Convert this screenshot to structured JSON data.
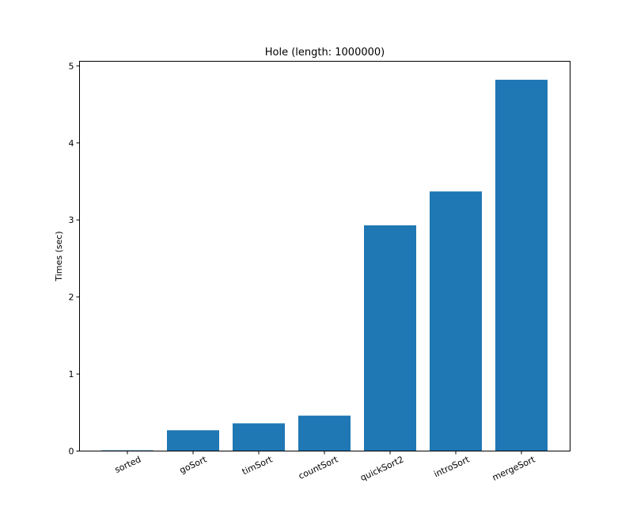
{
  "chart_data": {
    "type": "bar",
    "title": "Hole (length: 1000000)",
    "xlabel": "",
    "ylabel": "Times (sec)",
    "categories": [
      "sorted",
      "goSort",
      "timSort",
      "countSort",
      "quickSort2",
      "introSort",
      "mergeSort"
    ],
    "values": [
      0.01,
      0.27,
      0.36,
      0.46,
      2.93,
      3.37,
      4.82
    ],
    "ylim": [
      0,
      5.06
    ],
    "yticks": [
      0,
      1,
      2,
      3,
      4,
      5
    ],
    "grid": false,
    "bar_color": "#1f77b4"
  }
}
